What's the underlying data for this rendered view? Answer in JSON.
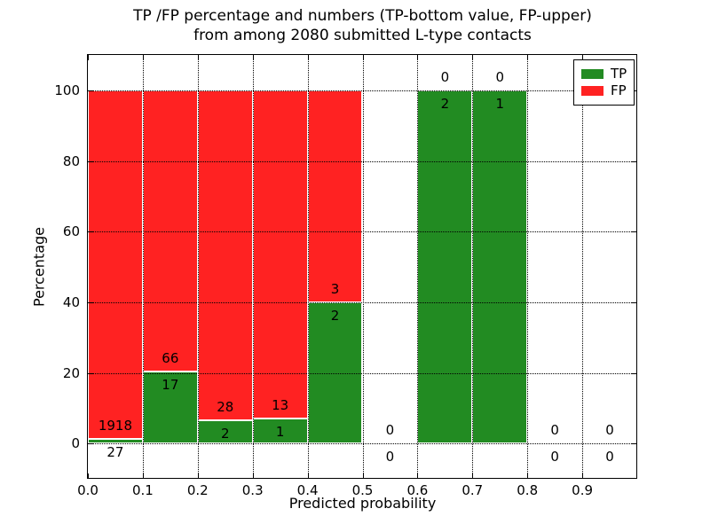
{
  "figure": {
    "title_line1": "TP /FP percentage and numbers (TP-bottom value, FP-upper)",
    "title_line2": "from among 2080 submitted L-type contacts"
  },
  "legend": {
    "items": [
      {
        "key": "tp",
        "label": "TP"
      },
      {
        "key": "fp",
        "label": "FP"
      }
    ]
  },
  "chart_data": {
    "type": "bar",
    "stacked": true,
    "title": "TP /FP percentage and numbers (TP-bottom value, FP-upper) from among 2080 submitted L-type contacts",
    "xlabel": "Predicted probability",
    "ylabel": "Percentage",
    "xlim": [
      0.0,
      1.0
    ],
    "ylim": [
      -10,
      110
    ],
    "x_tick_labels": [
      "0.0",
      "0.1",
      "0.2",
      "0.3",
      "0.4",
      "0.5",
      "0.6",
      "0.7",
      "0.8",
      "0.9"
    ],
    "y_tick_values": [
      0,
      20,
      40,
      60,
      80,
      100
    ],
    "grid": "dotted black, both axes, drawn over bars",
    "legend_position": "upper right",
    "colors": {
      "tp": "#228b22",
      "fp": "#ff2222"
    },
    "total_contacts": 2080,
    "bins": [
      {
        "range": [
          0.0,
          0.1
        ],
        "tp": 27,
        "fp": 1918
      },
      {
        "range": [
          0.1,
          0.2
        ],
        "tp": 17,
        "fp": 66
      },
      {
        "range": [
          0.2,
          0.3
        ],
        "tp": 2,
        "fp": 28
      },
      {
        "range": [
          0.3,
          0.4
        ],
        "tp": 1,
        "fp": 13
      },
      {
        "range": [
          0.4,
          0.5
        ],
        "tp": 2,
        "fp": 3
      },
      {
        "range": [
          0.5,
          0.6
        ],
        "tp": 0,
        "fp": 0
      },
      {
        "range": [
          0.6,
          0.7
        ],
        "tp": 2,
        "fp": 0
      },
      {
        "range": [
          0.7,
          0.8
        ],
        "tp": 1,
        "fp": 0
      },
      {
        "range": [
          0.8,
          0.9
        ],
        "tp": 0,
        "fp": 0
      },
      {
        "range": [
          0.9,
          1.0
        ],
        "tp": 0,
        "fp": 0
      }
    ]
  }
}
